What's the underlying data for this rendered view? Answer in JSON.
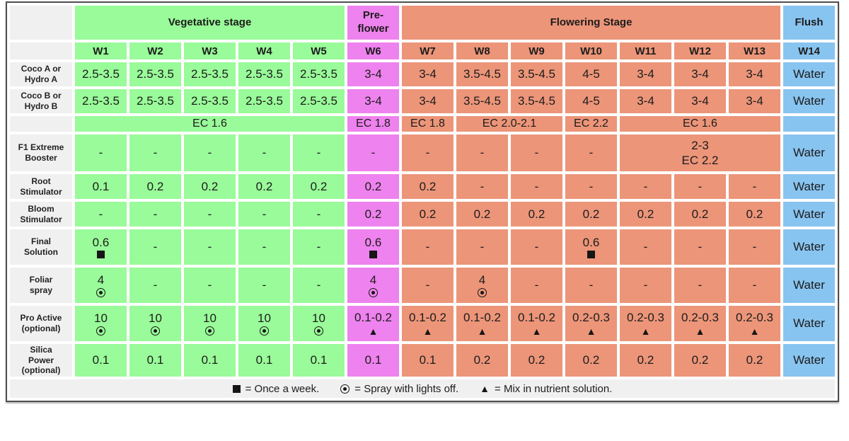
{
  "colors": {
    "veg": "#99FB99",
    "pre": "#EE82EE",
    "flower": "#EC9579",
    "flush": "#88C4F0",
    "label_bg": "#F0F0F0",
    "border": "#4E4E4E",
    "text": "#1C1C1C"
  },
  "chart_data": {
    "type": "table",
    "stage_headers": [
      {
        "label": "Vegetative stage",
        "span": 5,
        "key": "veg"
      },
      {
        "label": "Pre-\nflower",
        "span": 1,
        "key": "pre"
      },
      {
        "label": "Flowering Stage",
        "span": 7,
        "key": "flower"
      },
      {
        "label": "Flush",
        "span": 1,
        "key": "flush"
      }
    ],
    "week_headers": [
      "W1",
      "W2",
      "W3",
      "W4",
      "W5",
      "W6",
      "W7",
      "W8",
      "W9",
      "W10",
      "W11",
      "W12",
      "W13",
      "W14"
    ],
    "rows": [
      {
        "label": "Coco A or\nHydro A",
        "cells": [
          {
            "t": "2.5-3.5"
          },
          {
            "t": "2.5-3.5"
          },
          {
            "t": "2.5-3.5"
          },
          {
            "t": "2.5-3.5"
          },
          {
            "t": "2.5-3.5"
          },
          {
            "t": "3-4"
          },
          {
            "t": "3-4"
          },
          {
            "t": "3.5-4.5"
          },
          {
            "t": "3.5-4.5"
          },
          {
            "t": "4-5"
          },
          {
            "t": "3-4"
          },
          {
            "t": "3-4"
          },
          {
            "t": "3-4"
          },
          {
            "t": "Water"
          }
        ]
      },
      {
        "label": "Coco B or\nHydro B",
        "cells": [
          {
            "t": "2.5-3.5"
          },
          {
            "t": "2.5-3.5"
          },
          {
            "t": "2.5-3.5"
          },
          {
            "t": "2.5-3.5"
          },
          {
            "t": "2.5-3.5"
          },
          {
            "t": "3-4"
          },
          {
            "t": "3-4"
          },
          {
            "t": "3.5-4.5"
          },
          {
            "t": "3.5-4.5"
          },
          {
            "t": "4-5"
          },
          {
            "t": "3-4"
          },
          {
            "t": "3-4"
          },
          {
            "t": "3-4"
          },
          {
            "t": "Water"
          }
        ]
      },
      {
        "label": "",
        "cells": [
          {
            "t": "EC 1.6",
            "span": 5
          },
          {
            "t": "EC 1.8"
          },
          {
            "t": "EC 1.8"
          },
          {
            "t": "EC 2.0-2.1",
            "span": 2
          },
          {
            "t": "EC 2.2"
          },
          {
            "t": "EC 1.6",
            "span": 3
          },
          {
            "t": ""
          }
        ],
        "font": 16
      },
      {
        "label": "F1 Extreme\nBooster",
        "cells": [
          {
            "t": "-"
          },
          {
            "t": "-"
          },
          {
            "t": "-"
          },
          {
            "t": "-"
          },
          {
            "t": "-"
          },
          {
            "t": "-"
          },
          {
            "t": "-"
          },
          {
            "t": "-"
          },
          {
            "t": "-"
          },
          {
            "t": "-"
          },
          {
            "t": "2-3\nEC 2.2",
            "span": 3
          },
          {
            "t": "Water"
          }
        ]
      },
      {
        "label": "Root\nStimulator",
        "cells": [
          {
            "t": "0.1"
          },
          {
            "t": "0.2"
          },
          {
            "t": "0.2"
          },
          {
            "t": "0.2"
          },
          {
            "t": "0.2"
          },
          {
            "t": "0.2"
          },
          {
            "t": "0.2"
          },
          {
            "t": "-"
          },
          {
            "t": "-"
          },
          {
            "t": "-"
          },
          {
            "t": "-"
          },
          {
            "t": "-"
          },
          {
            "t": "-"
          },
          {
            "t": "Water"
          }
        ]
      },
      {
        "label": "Bloom\nStimulator",
        "cells": [
          {
            "t": "-"
          },
          {
            "t": "-"
          },
          {
            "t": "-"
          },
          {
            "t": "-"
          },
          {
            "t": "-"
          },
          {
            "t": "0.2"
          },
          {
            "t": "0.2"
          },
          {
            "t": "0.2"
          },
          {
            "t": "0.2"
          },
          {
            "t": "0.2"
          },
          {
            "t": "0.2"
          },
          {
            "t": "0.2"
          },
          {
            "t": "0.2"
          },
          {
            "t": "Water"
          }
        ]
      },
      {
        "label": "Final\nSolution",
        "cells": [
          {
            "t": "0.6",
            "s": "square"
          },
          {
            "t": "-"
          },
          {
            "t": "-"
          },
          {
            "t": "-"
          },
          {
            "t": "-"
          },
          {
            "t": "0.6",
            "s": "square"
          },
          {
            "t": "-"
          },
          {
            "t": "-"
          },
          {
            "t": "-"
          },
          {
            "t": "0.6",
            "s": "square"
          },
          {
            "t": "-"
          },
          {
            "t": "-"
          },
          {
            "t": "-"
          },
          {
            "t": "Water"
          }
        ]
      },
      {
        "label": "Foliar\nspray",
        "cells": [
          {
            "t": "4",
            "s": "spray"
          },
          {
            "t": "-"
          },
          {
            "t": "-"
          },
          {
            "t": "-"
          },
          {
            "t": "-"
          },
          {
            "t": "4",
            "s": "spray"
          },
          {
            "t": "-"
          },
          {
            "t": "4",
            "s": "spray"
          },
          {
            "t": "-"
          },
          {
            "t": "-"
          },
          {
            "t": "-"
          },
          {
            "t": "-"
          },
          {
            "t": "-"
          },
          {
            "t": "Water"
          }
        ]
      },
      {
        "label": "Pro Active\n(optional)",
        "cells": [
          {
            "t": "10",
            "s": "spray"
          },
          {
            "t": "10",
            "s": "spray"
          },
          {
            "t": "10",
            "s": "spray"
          },
          {
            "t": "10",
            "s": "spray"
          },
          {
            "t": "10",
            "s": "spray"
          },
          {
            "t": "0.1-0.2",
            "s": "triangle"
          },
          {
            "t": "0.1-0.2",
            "s": "triangle"
          },
          {
            "t": "0.1-0.2",
            "s": "triangle"
          },
          {
            "t": "0.1-0.2",
            "s": "triangle"
          },
          {
            "t": "0.2-0.3",
            "s": "triangle"
          },
          {
            "t": "0.2-0.3",
            "s": "triangle"
          },
          {
            "t": "0.2-0.3",
            "s": "triangle"
          },
          {
            "t": "0.2-0.3",
            "s": "triangle"
          },
          {
            "t": "Water"
          }
        ]
      },
      {
        "label": "Silica\nPower\n(optional)",
        "cells": [
          {
            "t": "0.1"
          },
          {
            "t": "0.1"
          },
          {
            "t": "0.1"
          },
          {
            "t": "0.1"
          },
          {
            "t": "0.1"
          },
          {
            "t": "0.1"
          },
          {
            "t": "0.1"
          },
          {
            "t": "0.2"
          },
          {
            "t": "0.2"
          },
          {
            "t": "0.2"
          },
          {
            "t": "0.2"
          },
          {
            "t": "0.2"
          },
          {
            "t": "0.2"
          },
          {
            "t": "Water"
          }
        ]
      }
    ],
    "legend": [
      {
        "icon": "square",
        "text": "= Once a week."
      },
      {
        "icon": "spray",
        "text": "= Spray with lights off."
      },
      {
        "icon": "triangle",
        "text": "= Mix in nutrient solution."
      }
    ]
  }
}
